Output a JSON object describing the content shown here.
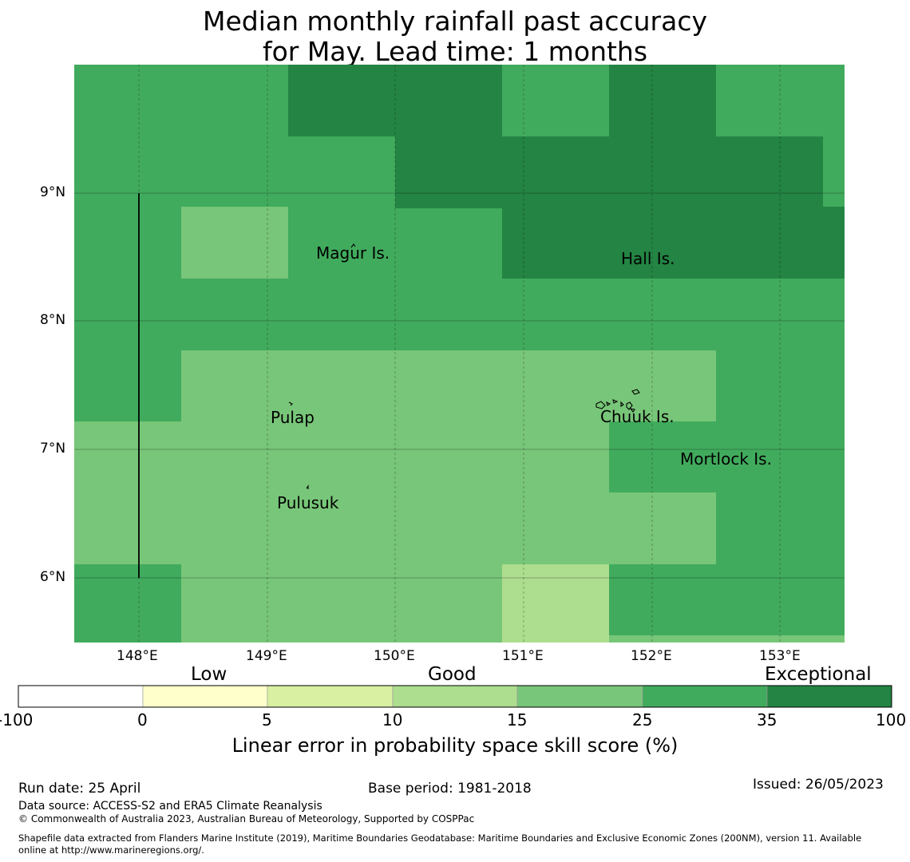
{
  "title": {
    "line1": "Median monthly rainfall past accuracy",
    "line2": "for May. Lead time: 1 months"
  },
  "map": {
    "lon_range": [
      147.5,
      153.5
    ],
    "lat_range": [
      5.5,
      10.0
    ],
    "grid_resolution_deg": 0.833,
    "x_ticks": [
      "148°E",
      "149°E",
      "150°E",
      "151°E",
      "152°E",
      "153°E"
    ],
    "y_ticks": [
      "9°N",
      "8°N",
      "7°N",
      "6°N"
    ],
    "place_labels": [
      "Magur Is.",
      "Hall Is.",
      "Pulap",
      "Chuuk Is.",
      "Mortlock Is.",
      "Pulusuk"
    ]
  },
  "colorbar": {
    "category_labels": [
      "Low",
      "Good",
      "Exceptional"
    ],
    "boundaries": [
      "-100",
      "0",
      "5",
      "10",
      "15",
      "25",
      "35",
      "100"
    ],
    "colors": [
      "#ffffff",
      "#ffffcc",
      "#d9f0a3",
      "#addd8e",
      "#78c679",
      "#41ab5d",
      "#238443"
    ],
    "label": "Linear error in probability space skill score (%)"
  },
  "footer": {
    "run_date": "Run date: 25 April",
    "base_period": "Base period: 1981-2018",
    "issued": "Issued: 26/05/2023",
    "data_source": "Data source: ACCESS-S2 and ERA5 Climate Reanalysis",
    "copyright": "© Commonwealth of Australia 2023, Australian Bureau of Meteorology, Supported by COSPPac",
    "shapefile_line1": "Shapefile data extracted from Flanders Marine Institute (2019), Maritime Boundaries Geodatabase: Maritime Boundaries and Exclusive Economic Zones (200NM), version 11. Available",
    "shapefile_line2": "online at http://www.marineregions.org/."
  }
}
